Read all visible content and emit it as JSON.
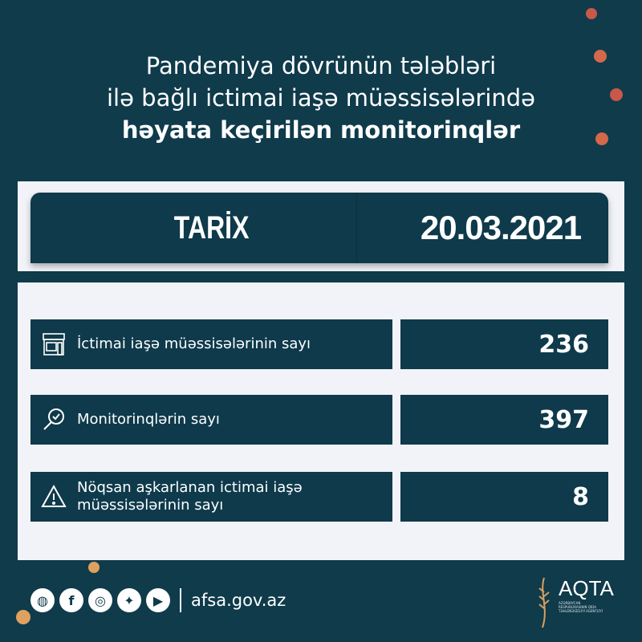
{
  "title": {
    "line1": "Pandemiya dövrünün tələbləri",
    "line2": "ilə bağlı ictimai iaşə müəssisələrində",
    "line3": "həyata keçirilən monitorinqlər"
  },
  "date": {
    "label": "TARİX",
    "value": "20.03.2021"
  },
  "rows": [
    {
      "icon": "store-icon",
      "label": "İctimai iaşə müəssisələrinin sayı",
      "value": "236"
    },
    {
      "icon": "magnifier-check-icon",
      "label": "Monitorinqlərin sayı",
      "value": "397"
    },
    {
      "icon": "warning-icon",
      "label": "Nöqsan aşkarlanan ictimai iaşə müəssisələrinin sayı",
      "value": "8"
    }
  ],
  "footer": {
    "icons": [
      "globe-icon",
      "facebook-icon",
      "instagram-icon",
      "twitter-icon",
      "youtube-icon"
    ],
    "url": "afsa.gov.az"
  },
  "logo": {
    "name": "AQTA",
    "subtitle": "AZƏRBAYCAN RESPUBLİKASININ QİDA TƏHLÜKƏSİZLİYİ AGENTLİYİ"
  },
  "colors": {
    "background": "#0f3b4b",
    "panel": "#f1f3f8",
    "accent": "#d9794f"
  }
}
